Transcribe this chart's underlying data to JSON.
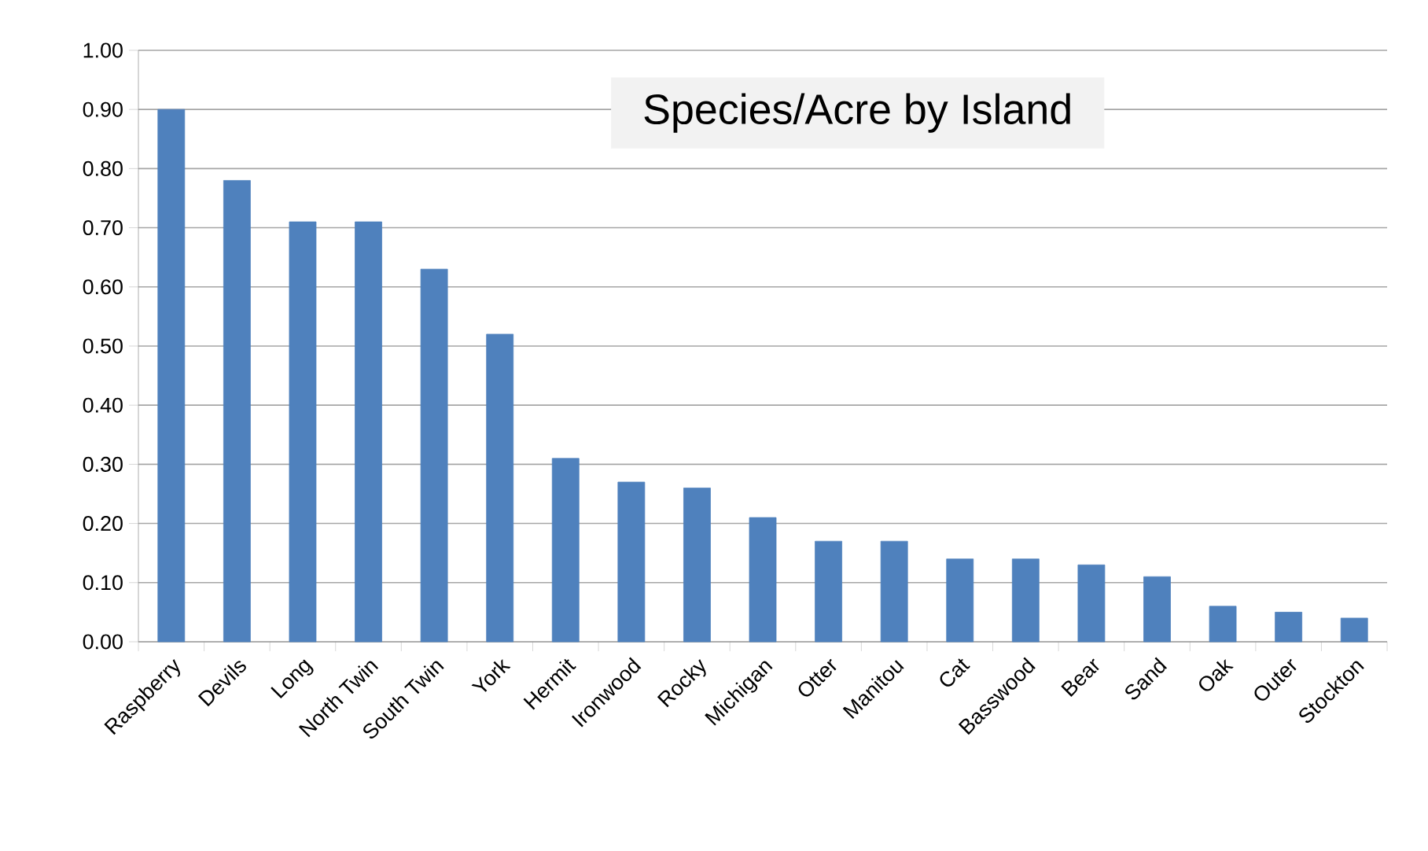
{
  "chart_data": {
    "type": "bar",
    "title": "Species/Acre by Island",
    "categories": [
      "Raspberry",
      "Devils",
      "Long",
      "North Twin",
      "South Twin",
      "York",
      "Hermit",
      "Ironwood",
      "Rocky",
      "Michigan",
      "Otter",
      "Manitou",
      "Cat",
      "Basswood",
      "Bear",
      "Sand",
      "Oak",
      "Outer",
      "Stockton"
    ],
    "values": [
      0.9,
      0.78,
      0.71,
      0.71,
      0.63,
      0.52,
      0.31,
      0.27,
      0.26,
      0.21,
      0.17,
      0.17,
      0.14,
      0.14,
      0.13,
      0.11,
      0.06,
      0.05,
      0.04
    ],
    "color": "#4f81bd",
    "ylim": [
      0,
      1
    ],
    "yticks": [
      {
        "value": 0,
        "label": "0.00"
      },
      {
        "value": 0.1,
        "label": "0.10"
      },
      {
        "value": 0.2,
        "label": "0.20"
      },
      {
        "value": 0.3,
        "label": "0.30"
      },
      {
        "value": 0.4,
        "label": "0.40"
      },
      {
        "value": 0.5,
        "label": "0.50"
      },
      {
        "value": 0.6,
        "label": "0.60"
      },
      {
        "value": 0.7,
        "label": "0.70"
      },
      {
        "value": 0.8,
        "label": "0.80"
      },
      {
        "value": 0.9,
        "label": "0.90"
      },
      {
        "value": 1,
        "label": "1.00"
      }
    ],
    "grid": true
  }
}
